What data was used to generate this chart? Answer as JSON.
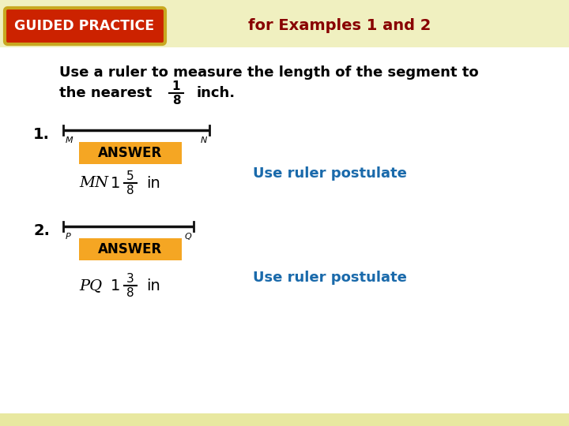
{
  "bg_color": "#f8f8e8",
  "stripe_light": "#f0f0d8",
  "stripe_dark": "#e8e8c8",
  "header_bg": "#f0f0c0",
  "gp_bg": "#cc2200",
  "gp_border": "#c8a820",
  "gp_text": "GUIDED PRACTICE",
  "gp_text_color": "#ffffff",
  "for_examples_text": "for Examples 1 and 2",
  "for_examples_color": "#880000",
  "instr1": "Use a ruler to measure the length of the segment to",
  "instr2_pre": "the nearest",
  "instr2_frac_num": "1",
  "instr2_frac_den": "8",
  "instr2_post": "inch.",
  "label1": "1.",
  "seg1_left": "M",
  "seg1_right": "N",
  "label2": "2.",
  "seg2_left": "P",
  "seg2_right": "Q",
  "answer_bg": "#f5a623",
  "answer_text": "ANSWER",
  "mn_pre": "MN",
  "mn_whole": "1",
  "mn_num": "5",
  "mn_den": "8",
  "mn_post": "in",
  "pq_pre": "PQ",
  "pq_whole": "1",
  "pq_num": "3",
  "pq_den": "8",
  "pq_post": "in",
  "postulate": "Use ruler postulate",
  "postulate_color": "#1a6aab",
  "black": "#000000",
  "white": "#ffffff",
  "seg_color": "#111111",
  "footer_bg": "#e8e8a0"
}
